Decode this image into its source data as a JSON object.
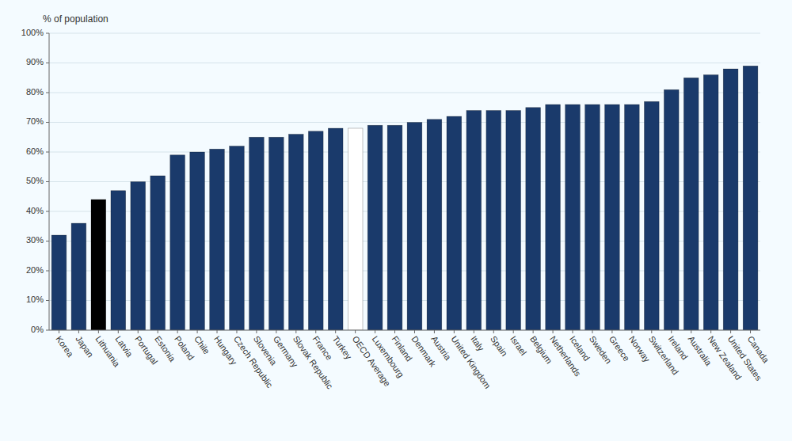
{
  "chart_data": {
    "type": "bar",
    "y_label": "% of population",
    "categories": [
      "Korea",
      "Japan",
      "Lithuania",
      "Latvia",
      "Portugal",
      "Estonia",
      "Poland",
      "Chile",
      "Hungary",
      "Czech Republic",
      "Slovenia",
      "Germany",
      "Slovak Republic",
      "France",
      "Turkey",
      "OECD Average",
      "Luxembourg",
      "Finland",
      "Denmark",
      "Austria",
      "United Kingdom",
      "Italy",
      "Spain",
      "Israel",
      "Belgium",
      "Netherlands",
      "Iceland",
      "Sweden",
      "Greece",
      "Norway",
      "Switzerland",
      "Ireland",
      "Australia",
      "New Zealand",
      "United States",
      "Canada"
    ],
    "values": [
      32,
      36,
      44,
      47,
      50,
      52,
      59,
      60,
      61,
      62,
      65,
      65,
      66,
      67,
      68,
      68,
      69,
      69,
      70,
      71,
      72,
      74,
      74,
      74,
      75,
      76,
      76,
      76,
      76,
      76,
      77,
      81,
      85,
      86,
      88,
      89
    ],
    "colors": [
      "#1a3a6b",
      "#1a3a6b",
      "#000000",
      "#1a3a6b",
      "#1a3a6b",
      "#1a3a6b",
      "#1a3a6b",
      "#1a3a6b",
      "#1a3a6b",
      "#1a3a6b",
      "#1a3a6b",
      "#1a3a6b",
      "#1a3a6b",
      "#1a3a6b",
      "#1a3a6b",
      "#ffffff",
      "#1a3a6b",
      "#1a3a6b",
      "#1a3a6b",
      "#1a3a6b",
      "#1a3a6b",
      "#1a3a6b",
      "#1a3a6b",
      "#1a3a6b",
      "#1a3a6b",
      "#1a3a6b",
      "#1a3a6b",
      "#1a3a6b",
      "#1a3a6b",
      "#1a3a6b",
      "#1a3a6b",
      "#1a3a6b",
      "#1a3a6b",
      "#1a3a6b",
      "#1a3a6b",
      "#1a3a6b"
    ],
    "ylim": [
      0,
      100
    ],
    "yticks": [
      {
        "value": 0,
        "label": "0%"
      },
      {
        "value": 10,
        "label": "10%"
      },
      {
        "value": 20,
        "label": "20%"
      },
      {
        "value": 30,
        "label": "30%"
      },
      {
        "value": 40,
        "label": "40%"
      },
      {
        "value": 50,
        "label": "50%"
      },
      {
        "value": 60,
        "label": "60%"
      },
      {
        "value": 70,
        "label": "70%"
      },
      {
        "value": 80,
        "label": "80%"
      },
      {
        "value": 90,
        "label": "90%"
      },
      {
        "value": 100,
        "label": "100%"
      }
    ],
    "grid": true
  }
}
